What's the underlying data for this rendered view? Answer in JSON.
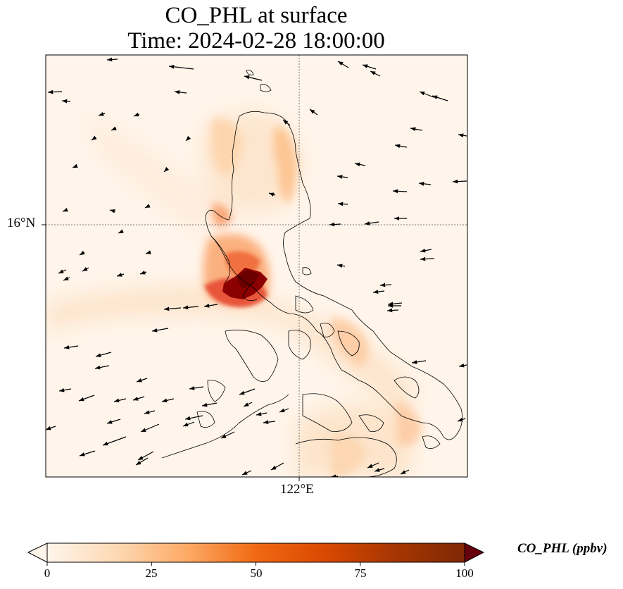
{
  "title": {
    "line1": "CO_PHL at surface",
    "line2": "Time: 2024-02-28 18:00:00"
  },
  "map": {
    "lat_tick_label": "16°N",
    "lon_tick_label": "122°E"
  },
  "colorbar": {
    "label": "CO_PHL (ppbv)",
    "ticks": [
      "0",
      "25",
      "50",
      "75",
      "100"
    ],
    "tick_values": [
      0,
      25,
      50,
      75,
      100
    ],
    "range": [
      0,
      100
    ],
    "colormap": [
      "#fff5eb",
      "#fdd9b4",
      "#fdaa66",
      "#f16913",
      "#d94801",
      "#a63603",
      "#7f2704"
    ],
    "extend": "both"
  },
  "colors": {
    "wind_arrow": "#000000",
    "coastline": "#000000",
    "gridline": "#777777"
  }
}
